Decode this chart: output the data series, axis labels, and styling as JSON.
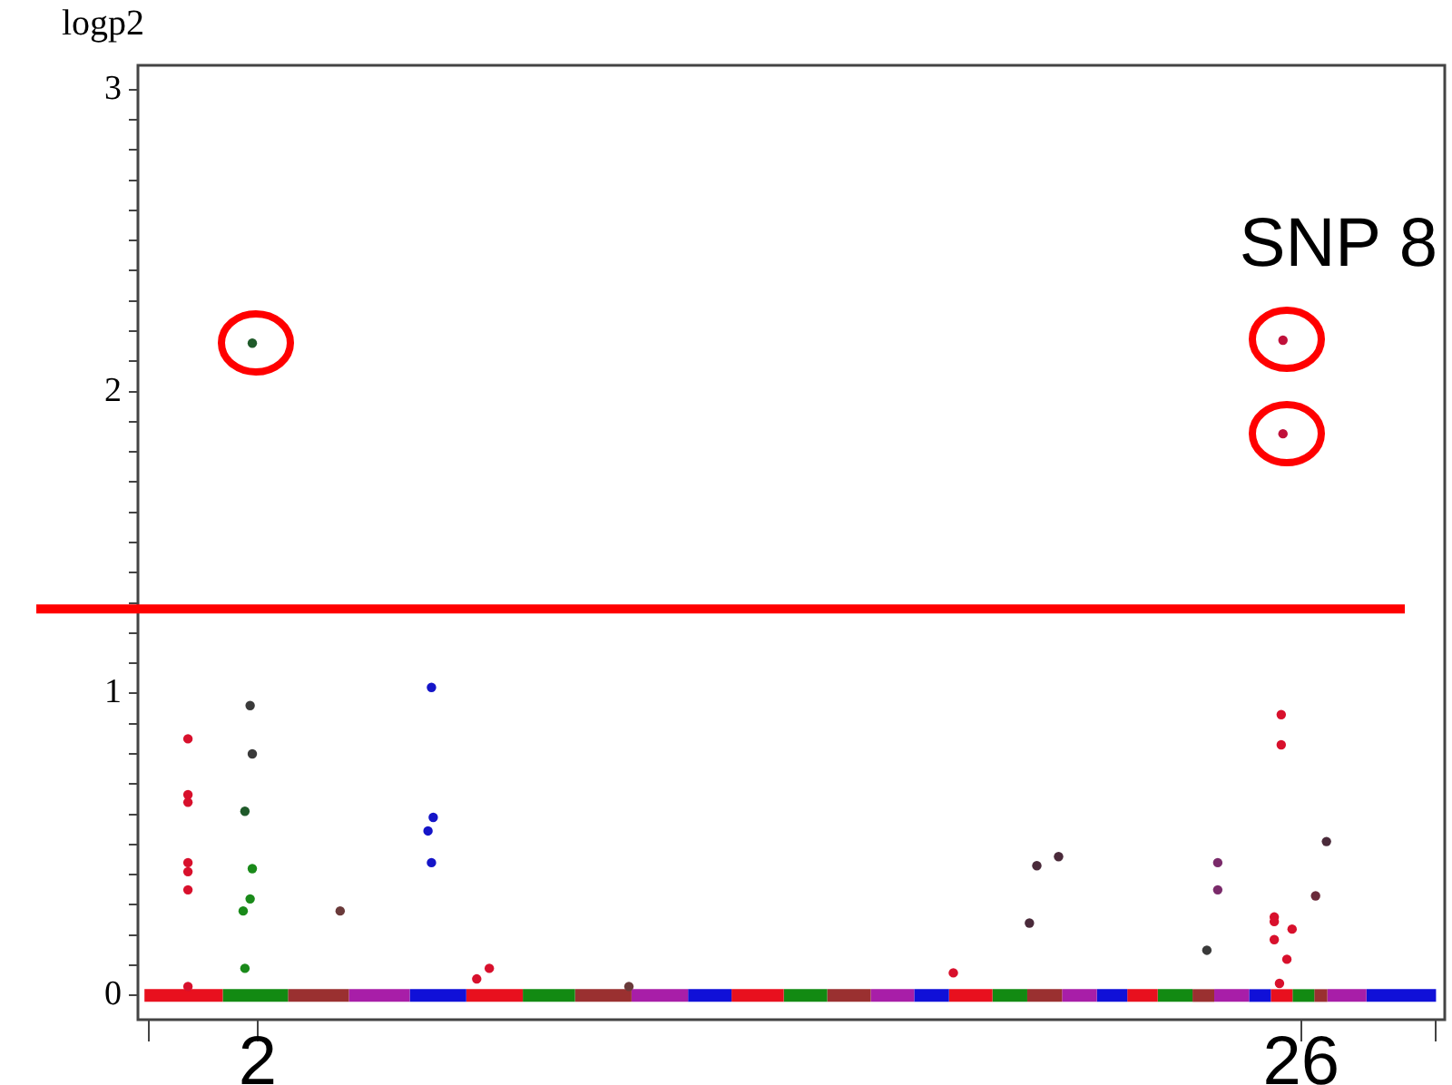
{
  "chart_data": {
    "type": "scatter",
    "ylabel": "logp2",
    "xlim": [
      -0.75,
      29.3
    ],
    "xticks": [
      {
        "value": -0.5,
        "label": null
      },
      2,
      26,
      {
        "value": 29.1,
        "label": null
      }
    ],
    "ylim": [
      -0.08,
      3.08
    ],
    "yticks": [
      0,
      {
        "value": 0.1,
        "label": null
      },
      {
        "value": 0.2,
        "label": null
      },
      {
        "value": 0.3,
        "label": null
      },
      {
        "value": 0.4,
        "label": null
      },
      {
        "value": 0.5,
        "label": null
      },
      {
        "value": 0.6,
        "label": null
      },
      {
        "value": 0.7,
        "label": null
      },
      {
        "value": 0.8,
        "label": null
      },
      {
        "value": 0.9,
        "label": null
      },
      1,
      {
        "value": 1.1,
        "label": null
      },
      {
        "value": 1.2,
        "label": null
      },
      {
        "value": 1.3,
        "label": null
      },
      {
        "value": 1.4,
        "label": null
      },
      {
        "value": 1.5,
        "label": null
      },
      {
        "value": 1.6,
        "label": null
      },
      {
        "value": 1.7,
        "label": null
      },
      {
        "value": 1.8,
        "label": null
      },
      {
        "value": 1.9,
        "label": null
      },
      2,
      {
        "value": 2.1,
        "label": null
      },
      {
        "value": 2.2,
        "label": null
      },
      {
        "value": 2.3,
        "label": null
      },
      {
        "value": 2.4,
        "label": null
      },
      {
        "value": 2.5,
        "label": null
      },
      {
        "value": 2.6,
        "label": null
      },
      {
        "value": 2.7,
        "label": null
      },
      {
        "value": 2.8,
        "label": null
      },
      {
        "value": 2.9,
        "label": null
      },
      3
    ],
    "grid": false,
    "legend": false,
    "marker": "circle",
    "series": [
      {
        "type": "line",
        "marker": "none",
        "color": "#e8101e",
        "x": [
          -0.6,
          1.2
        ],
        "values": [
          0,
          0
        ]
      },
      {
        "type": "line",
        "marker": "none",
        "color": "#128a12",
        "x": [
          1.2,
          2.7
        ],
        "values": [
          0,
          0
        ]
      },
      {
        "type": "line",
        "marker": "none",
        "color": "#9a3030",
        "x": [
          2.7,
          4.1
        ],
        "values": [
          0,
          0
        ]
      },
      {
        "type": "line",
        "marker": "none",
        "color": "#a81ea8",
        "x": [
          4.1,
          5.5
        ],
        "values": [
          0,
          0
        ]
      },
      {
        "type": "line",
        "marker": "none",
        "color": "#1010d8",
        "x": [
          5.5,
          6.8
        ],
        "values": [
          0,
          0
        ]
      },
      {
        "type": "line",
        "marker": "none",
        "color": "#e8101e",
        "x": [
          6.8,
          8.1
        ],
        "values": [
          0,
          0
        ]
      },
      {
        "type": "line",
        "marker": "none",
        "color": "#128a12",
        "x": [
          8.1,
          9.3
        ],
        "values": [
          0,
          0
        ]
      },
      {
        "type": "line",
        "marker": "none",
        "color": "#9a3030",
        "x": [
          9.3,
          10.6
        ],
        "values": [
          0,
          0
        ]
      },
      {
        "type": "line",
        "marker": "none",
        "color": "#a81ea8",
        "x": [
          10.6,
          11.9
        ],
        "values": [
          0,
          0
        ]
      },
      {
        "type": "line",
        "marker": "none",
        "color": "#1010d8",
        "x": [
          11.9,
          12.9
        ],
        "values": [
          0,
          0
        ]
      },
      {
        "type": "line",
        "marker": "none",
        "color": "#e8101e",
        "x": [
          12.9,
          14.1
        ],
        "values": [
          0,
          0
        ]
      },
      {
        "type": "line",
        "marker": "none",
        "color": "#128a12",
        "x": [
          14.1,
          15.1
        ],
        "values": [
          0,
          0
        ]
      },
      {
        "type": "line",
        "marker": "none",
        "color": "#9a3030",
        "x": [
          15.1,
          16.1
        ],
        "values": [
          0,
          0
        ]
      },
      {
        "type": "line",
        "marker": "none",
        "color": "#a81ea8",
        "x": [
          16.1,
          17.1
        ],
        "values": [
          0,
          0
        ]
      },
      {
        "type": "line",
        "marker": "none",
        "color": "#1010d8",
        "x": [
          17.1,
          17.9
        ],
        "values": [
          0,
          0
        ]
      },
      {
        "type": "line",
        "marker": "none",
        "color": "#e8101e",
        "x": [
          17.9,
          18.9
        ],
        "values": [
          0,
          0
        ]
      },
      {
        "type": "line",
        "marker": "none",
        "color": "#128a12",
        "x": [
          18.9,
          19.7
        ],
        "values": [
          0,
          0
        ]
      },
      {
        "type": "line",
        "marker": "none",
        "color": "#9a3030",
        "x": [
          19.7,
          20.5
        ],
        "values": [
          0,
          0
        ]
      },
      {
        "type": "line",
        "marker": "none",
        "color": "#a81ea8",
        "x": [
          20.5,
          21.3
        ],
        "values": [
          0,
          0
        ]
      },
      {
        "type": "line",
        "marker": "none",
        "color": "#1010d8",
        "x": [
          21.3,
          22.0
        ],
        "values": [
          0,
          0
        ]
      },
      {
        "type": "line",
        "marker": "none",
        "color": "#e8101e",
        "x": [
          22.0,
          22.7
        ],
        "values": [
          0,
          0
        ]
      },
      {
        "type": "line",
        "marker": "none",
        "color": "#128a12",
        "x": [
          22.7,
          23.5
        ],
        "values": [
          0,
          0
        ]
      },
      {
        "type": "line",
        "marker": "none",
        "color": "#9a3030",
        "x": [
          23.5,
          24.0
        ],
        "values": [
          0,
          0
        ]
      },
      {
        "type": "line",
        "marker": "none",
        "color": "#a81ea8",
        "x": [
          24.0,
          24.8
        ],
        "values": [
          0,
          0
        ]
      },
      {
        "type": "line",
        "marker": "none",
        "color": "#1010d8",
        "x": [
          24.8,
          25.3
        ],
        "values": [
          0,
          0
        ]
      },
      {
        "type": "line",
        "marker": "none",
        "color": "#e8101e",
        "x": [
          25.3,
          25.8
        ],
        "values": [
          0,
          0
        ]
      },
      {
        "type": "line",
        "marker": "none",
        "color": "#128a12",
        "x": [
          25.8,
          26.3
        ],
        "values": [
          0,
          0
        ]
      },
      {
        "type": "line",
        "marker": "none",
        "color": "#9a3030",
        "x": [
          26.3,
          26.6
        ],
        "values": [
          0,
          0
        ]
      },
      {
        "type": "line",
        "marker": "none",
        "color": "#a81ea8",
        "x": [
          26.6,
          27.5
        ],
        "values": [
          0,
          0
        ]
      },
      {
        "type": "line",
        "marker": "none",
        "color": "#1010d8",
        "x": [
          27.5,
          29.1
        ],
        "values": [
          0,
          0
        ]
      },
      {
        "x": [
          0.4,
          0.4,
          0.4,
          0.4,
          0.4,
          0.4,
          0.4,
          1.88,
          1.83,
          1.88,
          1.71,
          1.88,
          1.83,
          1.67,
          1.71,
          3.9,
          6.0,
          6.04,
          5.92,
          6.0,
          7.04,
          7.33,
          10.54,
          18.0,
          19.75,
          19.92,
          20.42,
          23.83,
          24.08,
          24.08,
          25.54,
          25.54,
          25.38,
          25.38,
          25.38,
          25.79,
          25.67,
          25.5,
          25.58,
          25.58,
          26.33,
          26.58
        ],
        "values": [
          0.85,
          0.665,
          0.64,
          0.44,
          0.41,
          0.35,
          0.03,
          2.16,
          0.96,
          0.8,
          0.61,
          0.42,
          0.32,
          0.28,
          0.09,
          0.28,
          1.02,
          0.59,
          0.545,
          0.44,
          0.055,
          0.09,
          0.03,
          0.075,
          0.24,
          0.43,
          0.46,
          0.15,
          0.44,
          0.35,
          0.93,
          0.83,
          0.26,
          0.245,
          0.185,
          0.22,
          0.12,
          0.04,
          2.17,
          1.86,
          0.33,
          0.51
        ],
        "colors": [
          "#d8102c",
          "#d8102c",
          "#d8102c",
          "#d8102c",
          "#d8102c",
          "#d8102c",
          "#d8102c",
          "#1f5a2a",
          "#3a3a3a",
          "#3a3a3a",
          "#1f5a2a",
          "#1a8a1a",
          "#1a8a1a",
          "#1a8a1a",
          "#1a8a1a",
          "#6a3a3a",
          "#1515c8",
          "#1515c8",
          "#1515c8",
          "#1515c8",
          "#d8102c",
          "#d8102c",
          "#6a3a3a",
          "#d8102c",
          "#4a2a3a",
          "#4a2a3a",
          "#4a2a3a",
          "#3a3a3a",
          "#7a2a6a",
          "#7a2a6a",
          "#d8102c",
          "#d8102c",
          "#d8102c",
          "#d8102c",
          "#d8102c",
          "#d8102c",
          "#d8102c",
          "#d8102c",
          "#c0103a",
          "#c0103a",
          "#6a2a3a",
          "#4a2a3a"
        ]
      }
    ],
    "ref_lines": [
      {
        "axis": "y",
        "value": 1.28,
        "color": "#ff0000"
      }
    ],
    "annotations": [
      "SNP 8"
    ]
  }
}
